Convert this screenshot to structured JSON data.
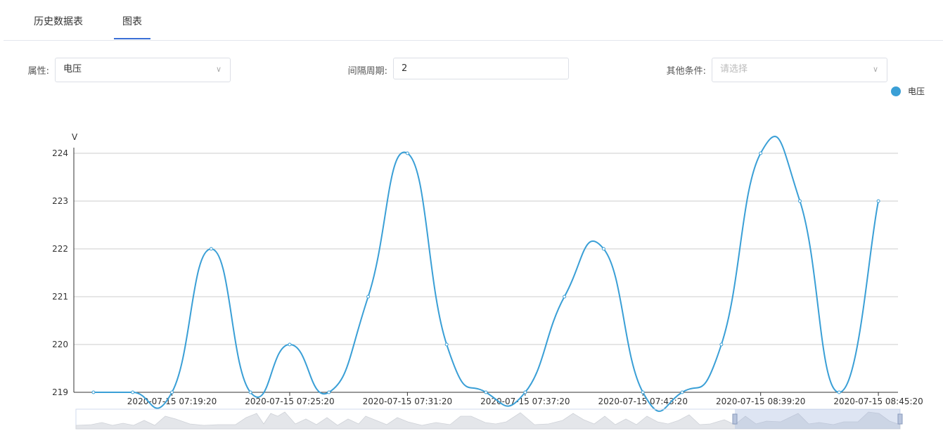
{
  "tabs": [
    "历史数据表",
    "图表"
  ],
  "filters": {
    "attribute": {
      "label": "属性:",
      "value": "电压"
    },
    "interval": {
      "label": "间隔周期:",
      "value": "2"
    },
    "other": {
      "label": "其他条件:",
      "placeholder": "请选择"
    }
  },
  "chart_data": {
    "type": "line",
    "y_label": "V",
    "categories": [
      null,
      null,
      "2020-07-15 07:19:20",
      null,
      null,
      "2020-07-15 07:25:20",
      null,
      null,
      "2020-07-15 07:31:20",
      null,
      null,
      "2020-07-15 07:37:20",
      null,
      null,
      "2020-07-15 07:43:20",
      null,
      null,
      "2020-07-15 08:39:20",
      null,
      null,
      "2020-07-15 08:45:20"
    ],
    "series": [
      {
        "name": "电压",
        "color": "#3a9fd6",
        "values": [
          219,
          219,
          219,
          222,
          219,
          220,
          219,
          221,
          224,
          220,
          219,
          219,
          221,
          222,
          219,
          219,
          220,
          224,
          223,
          219,
          223
        ]
      }
    ],
    "ylim": [
      219,
      224
    ],
    "yticks": [
      219,
      220,
      221,
      222,
      223,
      224
    ],
    "grid": true,
    "smooth": true,
    "legend": "top-right"
  }
}
